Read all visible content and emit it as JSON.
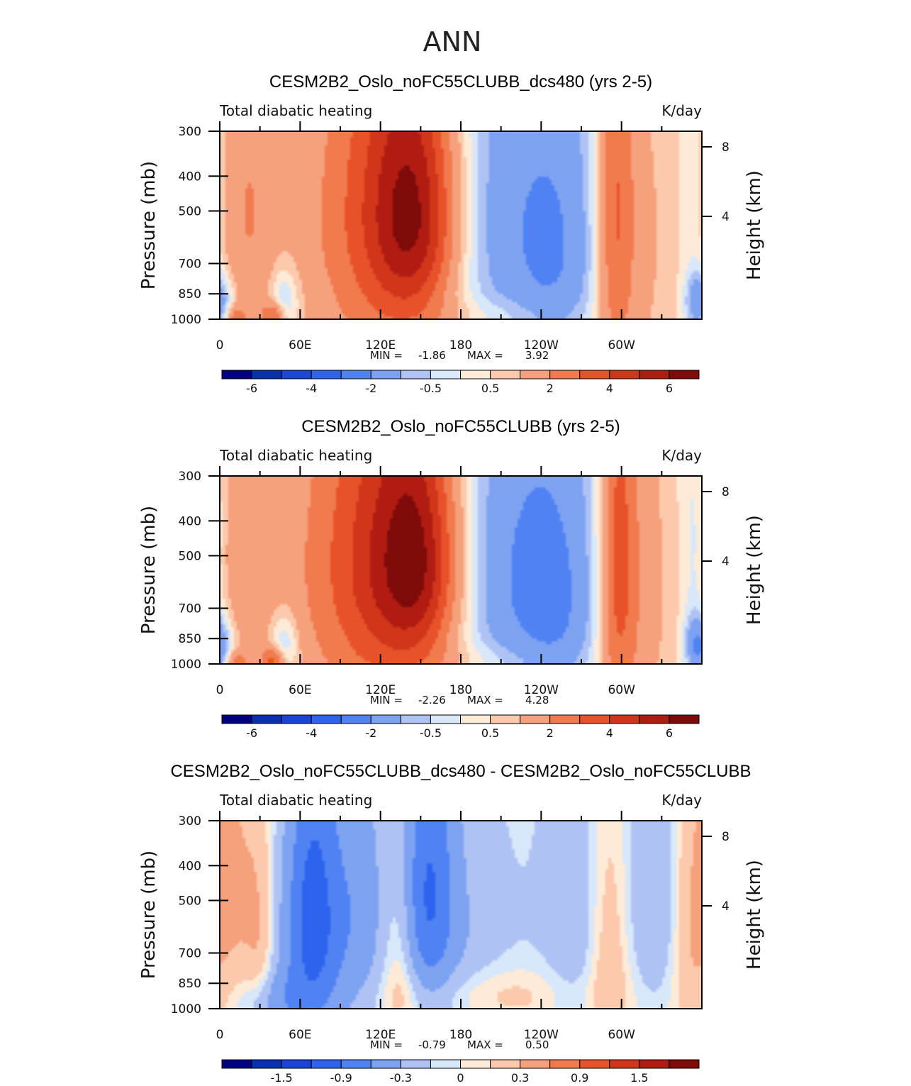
{
  "main_title": "ANN",
  "chart_data": [
    {
      "type": "heatmap",
      "title": "CESM2B2_Oslo_noFC55CLUBB_dcs480 (yrs 2-5)",
      "subtitle_left": "Total diabatic heating",
      "subtitle_right": "K/day",
      "ylabel": "Pressure (mb)",
      "ylabel_right": "Height (km)",
      "x_ticks": [
        "0",
        "60E",
        "120E",
        "180",
        "120W",
        "60W"
      ],
      "y_ticks": [
        "300",
        "400",
        "500",
        "700",
        "850",
        "1000"
      ],
      "y_ticks_right": [
        "8",
        "4"
      ],
      "stats": {
        "min_label": "MIN =",
        "min": "-1.86",
        "max_label": "MAX =",
        "max": "3.92"
      },
      "colorbar_labels": [
        "-6",
        "-4",
        "-2",
        "-0.5",
        "0.5",
        "2",
        "4",
        "6"
      ],
      "levels": [
        "-6",
        "-5",
        "-4",
        "-3",
        "-2",
        "-1",
        "-0.5",
        "0",
        "0.5",
        "1",
        "2",
        "3",
        "4",
        "5",
        "6"
      ],
      "blobs": [
        {
          "lon": 20,
          "p": 500,
          "v": 1.8,
          "wl": 22,
          "wp": 520
        },
        {
          "lon": 45,
          "p": 550,
          "v": -0.4,
          "wl": 10,
          "wp": 700
        },
        {
          "lon": 2,
          "p": 900,
          "v": -1.6,
          "wl": 8,
          "wp": 120
        },
        {
          "lon": 48,
          "p": 880,
          "v": -1.4,
          "wl": 8,
          "wp": 120
        },
        {
          "lon": 100,
          "p": 550,
          "v": 1.8,
          "wl": 40,
          "wp": 520
        },
        {
          "lon": 148,
          "p": 520,
          "v": 3.9,
          "wl": 22,
          "wp": 300
        },
        {
          "lon": 130,
          "p": 470,
          "v": 2.2,
          "wl": 30,
          "wp": 420
        },
        {
          "lon": 220,
          "p": 520,
          "v": -1.6,
          "wl": 45,
          "wp": 420
        },
        {
          "lon": 250,
          "p": 720,
          "v": -1.0,
          "wl": 20,
          "wp": 380
        },
        {
          "lon": 295,
          "p": 500,
          "v": 2.8,
          "wl": 10,
          "wp": 520
        },
        {
          "lon": 315,
          "p": 600,
          "v": 1.2,
          "wl": 18,
          "wp": 600
        },
        {
          "lon": 355,
          "p": 450,
          "v": -0.8,
          "wl": 8,
          "wp": 300
        },
        {
          "lon": 355,
          "p": 880,
          "v": -1.2,
          "wl": 6,
          "wp": 120
        },
        {
          "lon": 40,
          "p": 980,
          "v": 2.5,
          "wl": 6,
          "wp": 60
        },
        {
          "lon": 12,
          "p": 990,
          "v": 2.0,
          "wl": 5,
          "wp": 50
        },
        {
          "lon": 190,
          "p": 980,
          "v": 0.6,
          "wl": 60,
          "wp": 80
        }
      ]
    },
    {
      "type": "heatmap",
      "title": "CESM2B2_Oslo_noFC55CLUBB (yrs 2-5)",
      "subtitle_left": "Total diabatic heating",
      "subtitle_right": "K/day",
      "ylabel": "Pressure (mb)",
      "ylabel_right": "Height (km)",
      "x_ticks": [
        "0",
        "60E",
        "120E",
        "180",
        "120W",
        "60W"
      ],
      "y_ticks": [
        "300",
        "400",
        "500",
        "700",
        "850",
        "1000"
      ],
      "y_ticks_right": [
        "8",
        "4"
      ],
      "stats": {
        "min_label": "MIN =",
        "min": "-2.26",
        "max_label": "MAX =",
        "max": "4.28"
      },
      "colorbar_labels": [
        "-6",
        "-4",
        "-2",
        "-0.5",
        "0.5",
        "2",
        "4",
        "6"
      ],
      "levels": [
        "-6",
        "-5",
        "-4",
        "-3",
        "-2",
        "-1",
        "-0.5",
        "0",
        "0.5",
        "1",
        "2",
        "3",
        "4",
        "5",
        "6"
      ],
      "blobs": [
        {
          "lon": 20,
          "p": 500,
          "v": 1.6,
          "wl": 22,
          "wp": 520
        },
        {
          "lon": 45,
          "p": 550,
          "v": -0.4,
          "wl": 10,
          "wp": 700
        },
        {
          "lon": 2,
          "p": 900,
          "v": -1.8,
          "wl": 8,
          "wp": 120
        },
        {
          "lon": 48,
          "p": 880,
          "v": -1.5,
          "wl": 8,
          "wp": 120
        },
        {
          "lon": 100,
          "p": 560,
          "v": 2.4,
          "wl": 40,
          "wp": 520
        },
        {
          "lon": 150,
          "p": 520,
          "v": 4.3,
          "wl": 22,
          "wp": 300
        },
        {
          "lon": 125,
          "p": 480,
          "v": 2.0,
          "wl": 30,
          "wp": 420
        },
        {
          "lon": 225,
          "p": 540,
          "v": -1.9,
          "wl": 42,
          "wp": 420
        },
        {
          "lon": 250,
          "p": 760,
          "v": -1.0,
          "wl": 20,
          "wp": 380
        },
        {
          "lon": 297,
          "p": 520,
          "v": 3.0,
          "wl": 10,
          "wp": 520
        },
        {
          "lon": 315,
          "p": 620,
          "v": 1.4,
          "wl": 18,
          "wp": 600
        },
        {
          "lon": 355,
          "p": 460,
          "v": -1.0,
          "wl": 8,
          "wp": 300
        },
        {
          "lon": 355,
          "p": 880,
          "v": -1.4,
          "wl": 6,
          "wp": 120
        },
        {
          "lon": 40,
          "p": 980,
          "v": 2.7,
          "wl": 6,
          "wp": 60
        },
        {
          "lon": 12,
          "p": 990,
          "v": 2.1,
          "wl": 5,
          "wp": 50
        },
        {
          "lon": 190,
          "p": 980,
          "v": 0.6,
          "wl": 60,
          "wp": 80
        }
      ]
    },
    {
      "type": "heatmap",
      "title": "CESM2B2_Oslo_noFC55CLUBB_dcs480 - CESM2B2_Oslo_noFC55CLUBB",
      "subtitle_left": "Total diabatic heating",
      "subtitle_right": "K/day",
      "ylabel": "Pressure (mb)",
      "ylabel_right": "Height (km)",
      "x_ticks": [
        "0",
        "60E",
        "120E",
        "180",
        "120W",
        "60W"
      ],
      "y_ticks": [
        "300",
        "400",
        "500",
        "700",
        "850",
        "1000"
      ],
      "y_ticks_right": [
        "8",
        "4"
      ],
      "stats": {
        "min_label": "MIN =",
        "min": "-0.79",
        "max_label": "MAX =",
        "max": "0.50"
      },
      "colorbar_labels": [
        "-1.5",
        "-0.9",
        "-0.3",
        "0",
        "0.3",
        "0.9",
        "1.5"
      ],
      "levels": [
        "-1.8",
        "-1.5",
        "-1.2",
        "-0.9",
        "-0.6",
        "-0.3",
        "-0.1",
        "0",
        "0.1",
        "0.3",
        "0.6",
        "0.9",
        "1.2",
        "1.5",
        "1.8"
      ],
      "blobs": [
        {
          "lon": 10,
          "p": 480,
          "v": 0.35,
          "wl": 14,
          "wp": 360
        },
        {
          "lon": 30,
          "p": 650,
          "v": 0.3,
          "wl": 8,
          "wp": 300
        },
        {
          "lon": 70,
          "p": 500,
          "v": -0.79,
          "wl": 14,
          "wp": 340
        },
        {
          "lon": 70,
          "p": 800,
          "v": -0.35,
          "wl": 28,
          "wp": 400
        },
        {
          "lon": 105,
          "p": 480,
          "v": -0.35,
          "wl": 14,
          "wp": 300
        },
        {
          "lon": 135,
          "p": 700,
          "v": 0.3,
          "wl": 10,
          "wp": 350
        },
        {
          "lon": 155,
          "p": 460,
          "v": -0.75,
          "wl": 14,
          "wp": 300
        },
        {
          "lon": 170,
          "p": 700,
          "v": -0.25,
          "wl": 30,
          "wp": 450
        },
        {
          "lon": 220,
          "p": 650,
          "v": -0.05,
          "wl": 40,
          "wp": 500
        },
        {
          "lon": 270,
          "p": 560,
          "v": -0.25,
          "wl": 20,
          "wp": 450
        },
        {
          "lon": 290,
          "p": 700,
          "v": 0.35,
          "wl": 12,
          "wp": 450
        },
        {
          "lon": 325,
          "p": 480,
          "v": -0.3,
          "wl": 16,
          "wp": 300
        },
        {
          "lon": 350,
          "p": 600,
          "v": 0.25,
          "wl": 10,
          "wp": 400
        },
        {
          "lon": 200,
          "p": 920,
          "v": 0.25,
          "wl": 50,
          "wp": 120
        },
        {
          "lon": 40,
          "p": 950,
          "v": -0.3,
          "wl": 20,
          "wp": 120
        }
      ]
    }
  ]
}
